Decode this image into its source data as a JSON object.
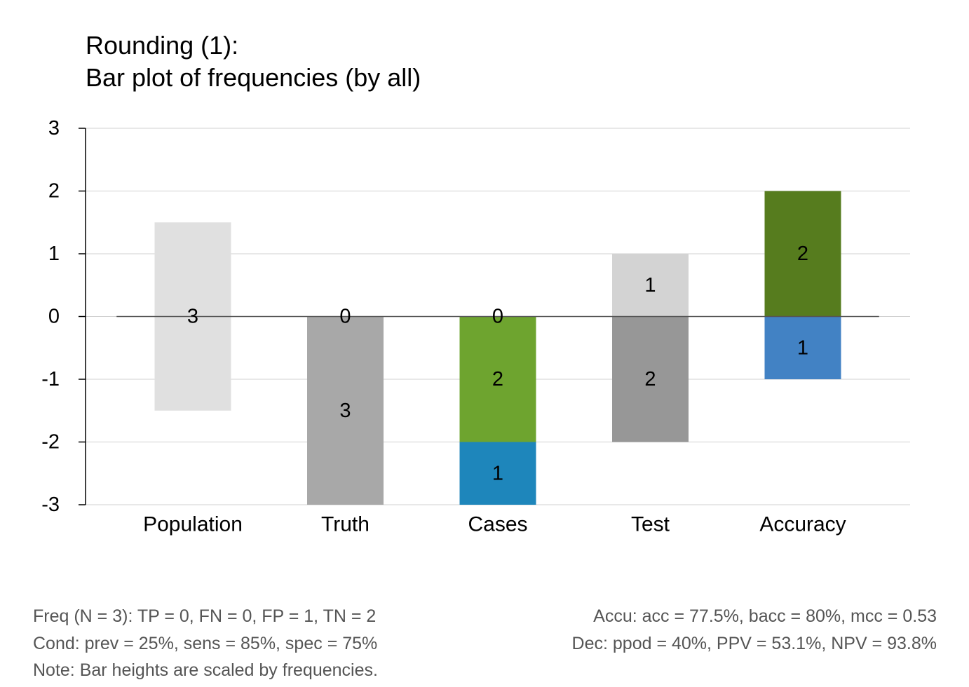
{
  "chart_data": {
    "type": "bar",
    "title": "Rounding (1):",
    "subtitle": "Bar plot of frequencies (by all)",
    "ylim": [
      -3,
      3
    ],
    "yticks": [
      3,
      2,
      1,
      0,
      -1,
      -2,
      -3
    ],
    "grid": true,
    "categories": [
      "Population",
      "Truth",
      "Cases",
      "Test",
      "Accuracy"
    ],
    "bars": [
      {
        "category": "Population",
        "segments": [
          {
            "from": -1.5,
            "to": 1.5,
            "label": "3",
            "label_at": 0,
            "color": "#e0e0e0"
          }
        ]
      },
      {
        "category": "Truth",
        "segments": [
          {
            "from": 0,
            "to": 0,
            "label": "0",
            "label_at": 0,
            "color": "#b0b0b0"
          },
          {
            "from": -3,
            "to": 0,
            "label": "3",
            "label_at": -1.5,
            "color": "#a8a8a8"
          }
        ]
      },
      {
        "category": "Cases",
        "segments": [
          {
            "from": 0,
            "to": 0,
            "label": "0",
            "label_at": 0,
            "color": "#cccccc"
          },
          {
            "from": -2,
            "to": 0,
            "label": "2",
            "label_at": -1,
            "color": "#6ea42f"
          },
          {
            "from": -3,
            "to": -2,
            "label": "1",
            "label_at": -2.5,
            "color": "#1e86bb"
          }
        ]
      },
      {
        "category": "Test",
        "segments": [
          {
            "from": 0,
            "to": 1,
            "label": "1",
            "label_at": 0.5,
            "color": "#d3d3d3"
          },
          {
            "from": -2,
            "to": 0,
            "label": "2",
            "label_at": -1,
            "color": "#979797"
          }
        ]
      },
      {
        "category": "Accuracy",
        "segments": [
          {
            "from": 0,
            "to": 2,
            "label": "2",
            "label_at": 1,
            "color": "#567c1e"
          },
          {
            "from": -1,
            "to": 0,
            "label": "1",
            "label_at": -0.5,
            "color": "#4282c4"
          }
        ]
      }
    ]
  },
  "notes": {
    "left": [
      "Freq (N = 3):  TP = 0, FN = 0, FP = 1, TN = 2",
      "Cond:  prev = 25%, sens = 85%, spec = 75%",
      "Note:  Bar heights are scaled by frequencies."
    ],
    "right": [
      "Accu:  acc = 77.5%, bacc = 80%, mcc = 0.53",
      "Dec:  ppod = 40%, PPV = 53.1%, NPV = 93.8%"
    ]
  }
}
